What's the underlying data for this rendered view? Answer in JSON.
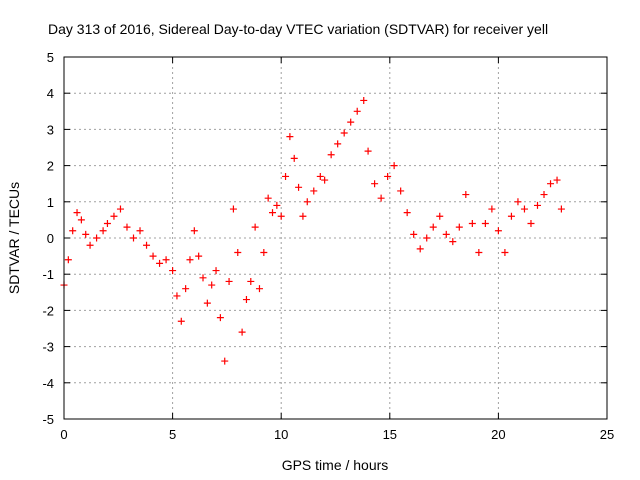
{
  "chart_data": {
    "type": "scatter",
    "title": "Day 313 of 2016, Sidereal Day-to-day VTEC variation (SDTVAR) for receiver yell",
    "xlabel": "GPS time / hours",
    "ylabel": "SDTVAR / TECUs",
    "xlim": [
      0,
      25
    ],
    "ylim": [
      -5,
      5
    ],
    "xticks": [
      0,
      5,
      10,
      15,
      20,
      25
    ],
    "yticks": [
      -5,
      -4,
      -3,
      -2,
      -1,
      0,
      1,
      2,
      3,
      4,
      5
    ],
    "grid": true,
    "marker": "+",
    "color": "#ff0000",
    "series": [
      {
        "name": "SDTVAR",
        "x": [
          0.0,
          0.2,
          0.4,
          0.6,
          0.8,
          1.0,
          1.2,
          1.5,
          1.8,
          2.0,
          2.3,
          2.6,
          2.9,
          3.2,
          3.5,
          3.8,
          4.1,
          4.4,
          4.7,
          5.0,
          5.2,
          5.4,
          5.6,
          5.8,
          6.0,
          6.2,
          6.4,
          6.6,
          6.8,
          7.0,
          7.2,
          7.4,
          7.6,
          7.8,
          8.0,
          8.2,
          8.4,
          8.6,
          8.8,
          9.0,
          9.2,
          9.4,
          9.6,
          9.8,
          10.0,
          10.2,
          10.4,
          10.6,
          10.8,
          11.0,
          11.2,
          11.5,
          11.8,
          12.0,
          12.3,
          12.6,
          12.9,
          13.2,
          13.5,
          13.8,
          14.0,
          14.3,
          14.6,
          14.9,
          15.2,
          15.5,
          15.8,
          16.1,
          16.4,
          16.7,
          17.0,
          17.3,
          17.6,
          17.9,
          18.2,
          18.5,
          18.8,
          19.1,
          19.4,
          19.7,
          20.0,
          20.3,
          20.6,
          20.9,
          21.2,
          21.5,
          21.8,
          22.1,
          22.4,
          22.7,
          22.9
        ],
        "y": [
          -1.3,
          -0.6,
          0.2,
          0.7,
          0.5,
          0.1,
          -0.2,
          0.0,
          0.2,
          0.4,
          0.6,
          0.8,
          0.3,
          0.0,
          0.2,
          -0.2,
          -0.5,
          -0.7,
          -0.6,
          -0.9,
          -1.6,
          -2.3,
          -1.4,
          -0.6,
          0.2,
          -0.5,
          -1.1,
          -1.8,
          -1.3,
          -0.9,
          -2.2,
          -3.4,
          -1.2,
          0.8,
          -0.4,
          -2.6,
          -1.7,
          -1.2,
          0.3,
          -1.4,
          -0.4,
          1.1,
          0.7,
          0.9,
          0.6,
          1.7,
          2.8,
          2.2,
          1.4,
          0.6,
          1.0,
          1.3,
          1.7,
          1.6,
          2.3,
          2.6,
          2.9,
          3.2,
          3.5,
          3.8,
          2.4,
          1.5,
          1.1,
          1.7,
          2.0,
          1.3,
          0.7,
          0.1,
          -0.3,
          0.0,
          0.3,
          0.6,
          0.1,
          -0.1,
          0.3,
          1.2,
          0.4,
          -0.4,
          0.4,
          0.8,
          0.2,
          -0.4,
          0.6,
          1.0,
          0.8,
          0.4,
          0.9,
          1.2,
          1.5,
          1.6,
          0.8
        ]
      }
    ]
  }
}
